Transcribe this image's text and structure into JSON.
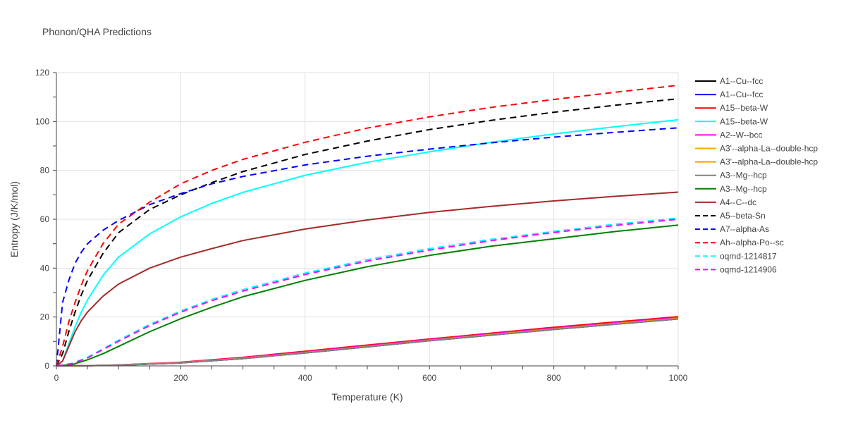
{
  "chart_data": {
    "type": "line",
    "title": "Phonon/QHA Predictions",
    "xlabel": "Temperature (K)",
    "ylabel": "Entropy (J/K/mol)",
    "xlim": [
      0,
      1000
    ],
    "ylim": [
      0,
      120
    ],
    "xticks": [
      0,
      200,
      400,
      600,
      800,
      1000
    ],
    "yticks": [
      0,
      20,
      40,
      60,
      80,
      100,
      120
    ],
    "grid": true,
    "legend_position": "right",
    "series": [
      {
        "name": "A1--Cu--fcc",
        "color": "#000000",
        "dash": "solid",
        "x": [
          0,
          50,
          100,
          200,
          300,
          400,
          500,
          600,
          700,
          800,
          900,
          1000
        ],
        "y": [
          0,
          0.1,
          0.3,
          1.2,
          3.0,
          5.3,
          7.8,
          10.3,
          12.6,
          14.9,
          17.1,
          19.2
        ]
      },
      {
        "name": "A1--Cu--fcc",
        "color": "#0000ff",
        "dash": "solid",
        "x": [
          0,
          50,
          100,
          200,
          300,
          400,
          500,
          600,
          700,
          800,
          900,
          1000
        ],
        "y": [
          0,
          0.1,
          0.3,
          1.2,
          3.0,
          5.3,
          7.8,
          10.3,
          12.6,
          14.9,
          17.1,
          19.2
        ]
      },
      {
        "name": "A15--beta-W",
        "color": "#ff0000",
        "dash": "solid",
        "x": [
          0,
          50,
          100,
          200,
          300,
          400,
          500,
          600,
          700,
          800,
          900,
          1000
        ],
        "y": [
          0,
          0.1,
          0.4,
          1.5,
          3.5,
          6.0,
          8.5,
          11.0,
          13.4,
          15.8,
          18.0,
          20.1
        ]
      },
      {
        "name": "A15--beta-W",
        "color": "#00ffff",
        "dash": "solid",
        "x": [
          0,
          10,
          20,
          30,
          40,
          50,
          75,
          100,
          150,
          200,
          250,
          300,
          400,
          500,
          600,
          700,
          800,
          900,
          1000
        ],
        "y": [
          0,
          2,
          9,
          16,
          22,
          27,
          37,
          44.5,
          54,
          61,
          66.5,
          71,
          78,
          83.3,
          87.6,
          91.5,
          94.9,
          97.9,
          100.7
        ]
      },
      {
        "name": "A2--W--bcc",
        "color": "#ff00ff",
        "dash": "solid",
        "x": [
          0,
          50,
          100,
          200,
          300,
          400,
          500,
          600,
          700,
          800,
          900,
          1000
        ],
        "y": [
          0,
          0.1,
          0.35,
          1.4,
          3.3,
          5.7,
          8.2,
          10.7,
          13.1,
          15.4,
          17.6,
          19.7
        ]
      },
      {
        "name": "A3'--alpha-La--double-hcp",
        "color": "#ffa500",
        "dash": "solid",
        "x": [
          0,
          50,
          100,
          200,
          300,
          400,
          500,
          600,
          700,
          800,
          900,
          1000
        ],
        "y": [
          0,
          0.1,
          0.3,
          1.3,
          3.1,
          5.4,
          7.9,
          10.4,
          12.8,
          15.1,
          17.3,
          19.4
        ]
      },
      {
        "name": "A3'--alpha-La--double-hcp",
        "color": "#ff9900",
        "dash": "solid",
        "x": [
          0,
          50,
          100,
          200,
          300,
          400,
          500,
          600,
          700,
          800,
          900,
          1000
        ],
        "y": [
          0,
          0.1,
          0.3,
          1.3,
          3.1,
          5.4,
          7.9,
          10.4,
          12.8,
          15.1,
          17.3,
          19.4
        ]
      },
      {
        "name": "A3--Mg--hcp",
        "color": "#808080",
        "dash": "solid",
        "x": [
          0,
          50,
          100,
          200,
          300,
          400,
          500,
          600,
          700,
          800,
          900,
          1000
        ],
        "y": [
          0,
          0.1,
          0.3,
          1.2,
          3.0,
          5.3,
          7.8,
          10.3,
          12.6,
          14.9,
          17.1,
          19.2
        ]
      },
      {
        "name": "A3--Mg--hcp",
        "color": "#008000",
        "dash": "solid",
        "x": [
          0,
          25,
          50,
          75,
          100,
          150,
          200,
          250,
          300,
          400,
          500,
          600,
          700,
          800,
          900,
          1000
        ],
        "y": [
          0,
          0.5,
          2.5,
          5.0,
          8.0,
          14.0,
          19.3,
          24.0,
          28.3,
          35.0,
          40.6,
          45.2,
          49.0,
          52.0,
          55.0,
          57.6
        ]
      },
      {
        "name": "A4--C--dc",
        "color": "#a52a2a",
        "dash": "solid",
        "x": [
          0,
          10,
          20,
          30,
          40,
          50,
          75,
          100,
          150,
          200,
          250,
          300,
          400,
          500,
          600,
          700,
          800,
          900,
          1000
        ],
        "y": [
          0,
          2,
          8,
          14,
          18.5,
          22,
          28.5,
          33.5,
          40,
          44.5,
          48,
          51.3,
          56,
          59.7,
          62.8,
          65.3,
          67.5,
          69.4,
          71.1
        ]
      },
      {
        "name": "A5--beta-Sn",
        "color": "#000000",
        "dash": "dash",
        "x": [
          0,
          10,
          20,
          30,
          40,
          50,
          75,
          100,
          150,
          200,
          250,
          300,
          400,
          500,
          600,
          700,
          800,
          900,
          1000
        ],
        "y": [
          0,
          5,
          14,
          22,
          29,
          35,
          46,
          54.5,
          64,
          70,
          75,
          79.5,
          86.5,
          92,
          96.7,
          100.5,
          103.8,
          106.7,
          109.3
        ]
      },
      {
        "name": "A7--alpha-As",
        "color": "#0000ff",
        "dash": "dash",
        "x": [
          0,
          10,
          20,
          30,
          40,
          50,
          75,
          100,
          150,
          200,
          250,
          300,
          400,
          500,
          600,
          700,
          800,
          900,
          1000
        ],
        "y": [
          0,
          26,
          35,
          42,
          46.5,
          50,
          55.5,
          59.5,
          66,
          70.5,
          74.5,
          77.5,
          82.2,
          85.8,
          88.7,
          91.3,
          93.6,
          95.6,
          97.4
        ]
      },
      {
        "name": "Ah--alpha-Po--sc",
        "color": "#ff0000",
        "dash": "dash",
        "x": [
          0,
          10,
          20,
          30,
          40,
          50,
          75,
          100,
          150,
          200,
          250,
          300,
          400,
          500,
          600,
          700,
          800,
          900,
          1000
        ],
        "y": [
          0,
          8,
          18,
          26,
          33,
          39,
          50,
          58,
          67,
          74.5,
          80,
          84.5,
          91.5,
          97.3,
          101.9,
          105.8,
          109,
          112,
          114.8
        ]
      },
      {
        "name": "oqmd-1214817",
        "color": "#00ffff",
        "dash": "dash",
        "x": [
          0,
          25,
          50,
          75,
          100,
          150,
          200,
          250,
          300,
          400,
          500,
          600,
          700,
          800,
          900,
          1000
        ],
        "y": [
          0,
          1.0,
          3.5,
          7.0,
          10.5,
          17.0,
          22.5,
          27.2,
          31.2,
          38.0,
          43.5,
          48.0,
          51.8,
          55.0,
          58.0,
          60.5
        ]
      },
      {
        "name": "oqmd-1214906",
        "color": "#ff00ff",
        "dash": "dash",
        "x": [
          0,
          25,
          50,
          75,
          100,
          150,
          200,
          250,
          300,
          400,
          500,
          600,
          700,
          800,
          900,
          1000
        ],
        "y": [
          0,
          0.9,
          3.3,
          6.7,
          10.1,
          16.5,
          22.0,
          26.7,
          30.6,
          37.4,
          42.9,
          47.4,
          51.3,
          54.6,
          57.5,
          60.0
        ]
      }
    ]
  }
}
